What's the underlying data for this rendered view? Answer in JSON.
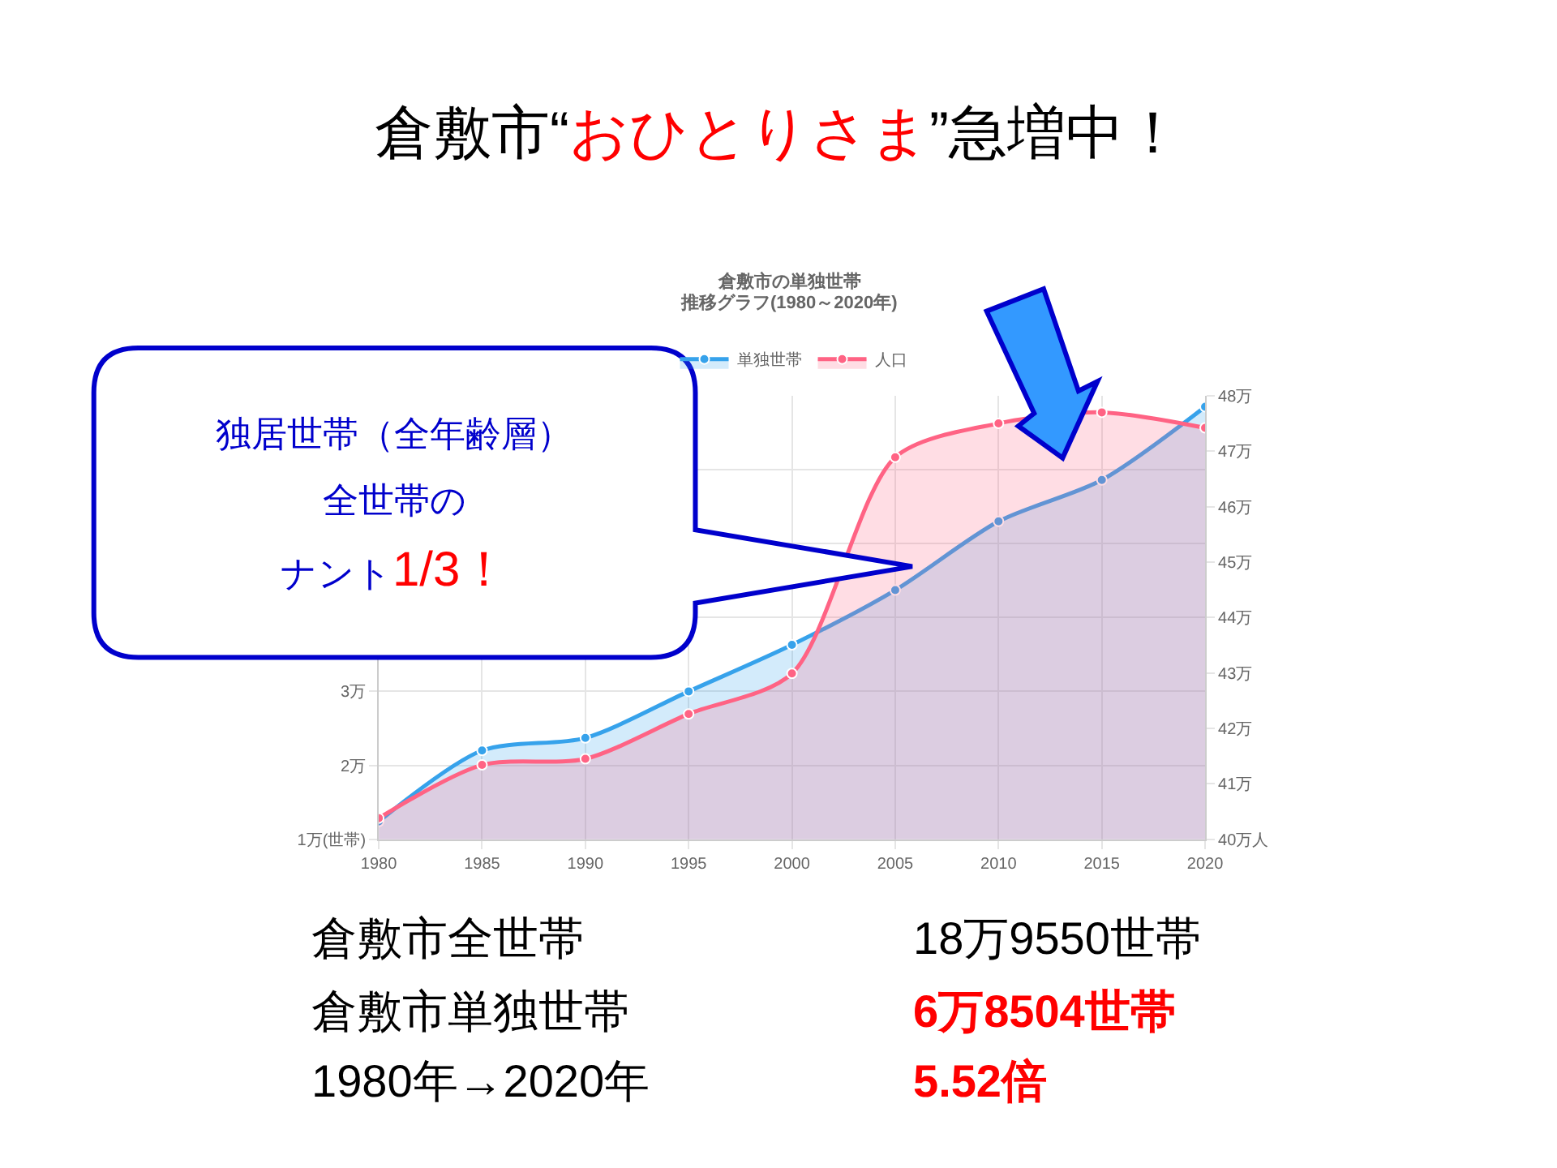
{
  "chart_data": {
    "type": "area",
    "title": "倉敷市“おひとりさま”急増中！",
    "subtitle": "倉敷市の単独世帯",
    "x": [
      1980,
      1985,
      1990,
      1995,
      2000,
      2005,
      2010,
      2015,
      2020
    ],
    "series": [
      {
        "name": "単独世帯",
        "color": "#36a2eb",
        "values": [
          1.24,
          2.2,
          2.37,
          3.0,
          3.63,
          4.37,
          5.3,
          5.86,
          6.85
        ]
      },
      {
        "name": "人口",
        "color": "#ff6384",
        "axis": "y2",
        "values": [
          40.38,
          41.34,
          41.45,
          42.26,
          42.99,
          46.89,
          47.5,
          47.7,
          47.42
        ]
      }
    ],
    "xlim": [
      1980,
      2020
    ],
    "xticks": [
      1980,
      1985,
      1990,
      1995,
      2000,
      2005,
      2010,
      2015,
      2020
    ],
    "ylim": [
      1,
      7
    ],
    "yticks": [
      {
        "value": 1,
        "label": "1万(世帯)"
      },
      {
        "value": 2,
        "label": "2万"
      },
      {
        "value": 3,
        "label": "3万"
      },
      {
        "value": 4,
        "label": null
      },
      {
        "value": 5,
        "label": null
      },
      {
        "value": 6,
        "label": null
      },
      {
        "value": 7,
        "label": null
      }
    ],
    "y2lim": [
      40,
      48
    ],
    "y2ticks": [
      {
        "value": 40,
        "label": "40万人"
      },
      {
        "value": 41,
        "label": "41万"
      },
      {
        "value": 42,
        "label": "42万"
      },
      {
        "value": 43,
        "label": "43万"
      },
      {
        "value": 44,
        "label": "44万"
      },
      {
        "value": 45,
        "label": "45万"
      },
      {
        "value": 46,
        "label": "46万"
      },
      {
        "value": 47,
        "label": "47万"
      },
      {
        "value": 48,
        "label": "48万"
      }
    ],
    "grid": true,
    "legend": "top",
    "marker": "circle",
    "annotations": [
      "独居世帯（全年齢層）",
      "全世帯の",
      "ナント",
      "1/3！",
      "倉敷市全世帯",
      "18万9550世帯",
      "倉敷市単独世帯",
      "6万8504世帯",
      "1980年→2020年",
      "5.52倍",
      "推移グラフ(1980～2020年)"
    ]
  }
}
